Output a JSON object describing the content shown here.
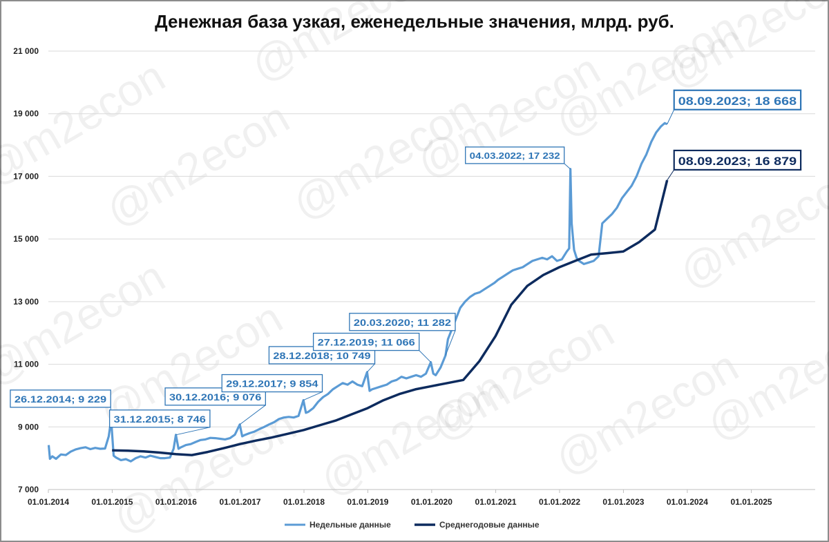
{
  "chart_data": {
    "type": "line",
    "title": "Денежная база узкая, еженедельные значения, млрд. руб.",
    "xlabel": "",
    "ylabel": "",
    "ylim": [
      7000,
      21000
    ],
    "xlim": [
      "2014-01-01",
      "2026-01-01"
    ],
    "yticks": [
      "7 000",
      "9 000",
      "11 000",
      "13 000",
      "15 000",
      "17 000",
      "19 000",
      "21 000"
    ],
    "xticks": [
      "01.01.2014",
      "01.01.2015",
      "01.01.2016",
      "01.01.2017",
      "01.01.2018",
      "01.01.2019",
      "01.01.2020",
      "01.01.2021",
      "01.01.2022",
      "01.01.2023",
      "01.01.2024",
      "01.01.2025"
    ],
    "grid": "horizontal",
    "legend_position": "bottom",
    "colors": {
      "weekly": "#5b9bd5",
      "yearly": "#0d2b5e"
    },
    "series": [
      {
        "name": "Недельные данные",
        "x": [
          "2014-01-03",
          "2014-01-10",
          "2014-01-24",
          "2014-02-14",
          "2014-03-14",
          "2014-04-11",
          "2014-05-09",
          "2014-06-06",
          "2014-07-04",
          "2014-08-01",
          "2014-08-29",
          "2014-09-26",
          "2014-10-24",
          "2014-11-21",
          "2014-12-12",
          "2014-12-26",
          "2015-01-09",
          "2015-01-23",
          "2015-02-20",
          "2015-03-20",
          "2015-04-17",
          "2015-05-15",
          "2015-06-12",
          "2015-07-10",
          "2015-08-07",
          "2015-09-04",
          "2015-10-02",
          "2015-10-30",
          "2015-11-27",
          "2015-12-18",
          "2015-12-31",
          "2016-01-15",
          "2016-01-29",
          "2016-02-26",
          "2016-03-25",
          "2016-04-22",
          "2016-05-20",
          "2016-06-17",
          "2016-07-15",
          "2016-08-12",
          "2016-09-09",
          "2016-10-07",
          "2016-11-04",
          "2016-12-02",
          "2016-12-30",
          "2017-01-13",
          "2017-01-27",
          "2017-02-24",
          "2017-03-24",
          "2017-04-21",
          "2017-05-19",
          "2017-06-16",
          "2017-07-14",
          "2017-08-11",
          "2017-09-08",
          "2017-10-06",
          "2017-11-03",
          "2017-12-01",
          "2017-12-29",
          "2018-01-12",
          "2018-01-26",
          "2018-02-23",
          "2018-03-23",
          "2018-04-20",
          "2018-05-18",
          "2018-06-15",
          "2018-07-13",
          "2018-08-10",
          "2018-09-07",
          "2018-10-05",
          "2018-11-02",
          "2018-11-30",
          "2018-12-28",
          "2019-01-11",
          "2019-01-25",
          "2019-02-22",
          "2019-03-22",
          "2019-04-19",
          "2019-05-17",
          "2019-06-14",
          "2019-07-12",
          "2019-08-09",
          "2019-09-06",
          "2019-10-04",
          "2019-11-01",
          "2019-11-29",
          "2019-12-27",
          "2020-01-10",
          "2020-01-24",
          "2020-02-21",
          "2020-03-20",
          "2020-04-03",
          "2020-04-17",
          "2020-05-15",
          "2020-06-12",
          "2020-07-10",
          "2020-08-07",
          "2020-09-04",
          "2020-10-02",
          "2020-10-30",
          "2020-11-27",
          "2020-12-25",
          "2021-01-15",
          "2021-02-12",
          "2021-03-12",
          "2021-04-09",
          "2021-05-07",
          "2021-06-04",
          "2021-07-02",
          "2021-07-30",
          "2021-08-27",
          "2021-09-24",
          "2021-10-22",
          "2021-11-19",
          "2021-12-17",
          "2022-01-14",
          "2022-02-11",
          "2022-02-25",
          "2022-03-04",
          "2022-03-11",
          "2022-03-25",
          "2022-04-08",
          "2022-04-22",
          "2022-05-20",
          "2022-06-17",
          "2022-07-15",
          "2022-08-12",
          "2022-09-02",
          "2022-09-30",
          "2022-10-28",
          "2022-11-25",
          "2022-12-23",
          "2023-01-20",
          "2023-02-17",
          "2023-03-17",
          "2023-04-14",
          "2023-05-12",
          "2023-06-09",
          "2023-07-07",
          "2023-08-04",
          "2023-08-25",
          "2023-09-08"
        ],
        "y": [
          8420,
          7980,
          8060,
          7980,
          8120,
          8100,
          8210,
          8280,
          8320,
          8350,
          8290,
          8330,
          8300,
          8310,
          8700,
          9229,
          8080,
          8020,
          7940,
          7970,
          7900,
          8000,
          8060,
          8020,
          8080,
          8040,
          8000,
          8000,
          8020,
          8300,
          8746,
          8300,
          8350,
          8420,
          8450,
          8520,
          8580,
          8600,
          8650,
          8640,
          8620,
          8600,
          8640,
          8750,
          9076,
          8700,
          8740,
          8800,
          8850,
          8930,
          9000,
          9080,
          9150,
          9250,
          9300,
          9320,
          9300,
          9350,
          9854,
          9450,
          9480,
          9600,
          9800,
          9950,
          10050,
          10200,
          10300,
          10400,
          10350,
          10450,
          10350,
          10300,
          10749,
          10150,
          10200,
          10250,
          10300,
          10350,
          10450,
          10500,
          10600,
          10550,
          10600,
          10650,
          10600,
          10700,
          11066,
          10700,
          10650,
          10900,
          11282,
          11800,
          12000,
          12400,
          12800,
          13000,
          13150,
          13250,
          13300,
          13400,
          13500,
          13600,
          13700,
          13800,
          13900,
          14000,
          14050,
          14100,
          14200,
          14300,
          14350,
          14400,
          14350,
          14450,
          14300,
          14350,
          14600,
          14700,
          17232,
          15500,
          14650,
          14400,
          14300,
          14200,
          14250,
          14300,
          14450,
          15500,
          15650,
          15800,
          16000,
          16300,
          16500,
          16700,
          17000,
          17400,
          17700,
          18100,
          18400,
          18600,
          18700,
          18668
        ]
      },
      {
        "name": "Среднегодовые данные",
        "x": [
          "2014-12-31",
          "2015-03-31",
          "2015-06-30",
          "2015-09-30",
          "2015-12-31",
          "2016-03-31",
          "2016-06-30",
          "2016-09-30",
          "2016-12-31",
          "2017-03-31",
          "2017-06-30",
          "2017-09-30",
          "2017-12-31",
          "2018-03-31",
          "2018-06-30",
          "2018-09-30",
          "2018-12-31",
          "2019-03-31",
          "2019-06-30",
          "2019-09-30",
          "2019-12-31",
          "2020-03-31",
          "2020-06-30",
          "2020-09-30",
          "2020-12-31",
          "2021-03-31",
          "2021-06-30",
          "2021-09-30",
          "2021-12-31",
          "2022-03-31",
          "2022-06-30",
          "2022-09-30",
          "2022-12-31",
          "2023-03-31",
          "2023-06-30",
          "2023-09-08"
        ],
        "y": [
          8250,
          8240,
          8220,
          8180,
          8130,
          8100,
          8200,
          8320,
          8450,
          8560,
          8660,
          8780,
          8900,
          9050,
          9200,
          9400,
          9600,
          9850,
          10050,
          10200,
          10300,
          10400,
          10500,
          11100,
          11900,
          12900,
          13500,
          13850,
          14100,
          14300,
          14500,
          14550,
          14600,
          14900,
          15300,
          16879
        ]
      }
    ],
    "annotations": [
      {
        "text": "26.12.2014; 9 229",
        "x": "2014-12-26",
        "y": 9229
      },
      {
        "text": "31.12.2015; 8 746",
        "x": "2015-12-31",
        "y": 8746
      },
      {
        "text": "30.12.2016; 9 076",
        "x": "2016-12-30",
        "y": 9076
      },
      {
        "text": "29.12.2017; 9 854",
        "x": "2017-12-29",
        "y": 9854
      },
      {
        "text": "28.12.2018; 10 749",
        "x": "2018-12-28",
        "y": 10749
      },
      {
        "text": "27.12.2019; 11 066",
        "x": "2019-12-27",
        "y": 11066
      },
      {
        "text": "20.03.2020; 11 282",
        "x": "2020-03-20",
        "y": 11282
      },
      {
        "text": "04.03.2022; 17 232",
        "x": "2022-03-04",
        "y": 17232
      },
      {
        "text": "08.09.2023; 18 668",
        "x": "2023-09-08",
        "y": 18668
      },
      {
        "text": "08.09.2023; 16 879",
        "x": "2023-09-08",
        "y": 16879
      }
    ],
    "watermark": "@m2econ"
  }
}
